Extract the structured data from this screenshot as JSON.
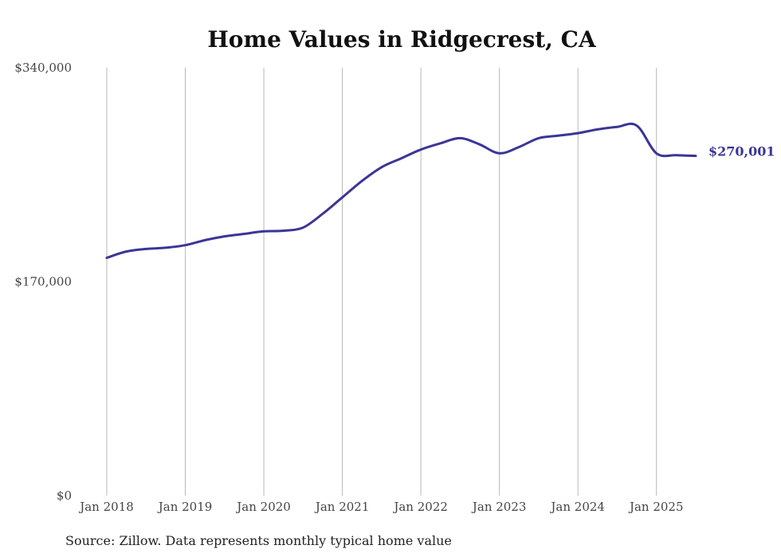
{
  "chart_data": {
    "type": "line",
    "title": "Home Values in Ridgecrest, CA",
    "source": "Source: Zillow. Data represents monthly typical home value",
    "ylim": [
      0,
      340000
    ],
    "y_ticks": [
      {
        "value": 0,
        "label": "$0"
      },
      {
        "value": 170000,
        "label": "$170,000"
      },
      {
        "value": 340000,
        "label": "$340,000"
      }
    ],
    "x_ticks": [
      {
        "x": 2018.0,
        "label": "Jan 2018"
      },
      {
        "x": 2019.0,
        "label": "Jan 2019"
      },
      {
        "x": 2020.0,
        "label": "Jan 2020"
      },
      {
        "x": 2021.0,
        "label": "Jan 2021"
      },
      {
        "x": 2022.0,
        "label": "Jan 2022"
      },
      {
        "x": 2023.0,
        "label": "Jan 2023"
      },
      {
        "x": 2024.0,
        "label": "Jan 2024"
      },
      {
        "x": 2025.0,
        "label": "Jan 2025"
      }
    ],
    "xlim": [
      2018.0,
      2025.5
    ],
    "grid": "vertical",
    "series": [
      {
        "color": "#3b3596",
        "end_label": "$270,001",
        "x": [
          2018.0,
          2018.25,
          2018.5,
          2018.75,
          2019.0,
          2019.25,
          2019.5,
          2019.75,
          2020.0,
          2020.25,
          2020.5,
          2020.75,
          2021.0,
          2021.25,
          2021.5,
          2021.75,
          2022.0,
          2022.25,
          2022.5,
          2022.75,
          2023.0,
          2023.25,
          2023.5,
          2023.75,
          2024.0,
          2024.25,
          2024.5,
          2024.75,
          2025.0,
          2025.25,
          2025.5
        ],
        "values": [
          189000,
          194000,
          196000,
          197000,
          199000,
          203000,
          206000,
          208000,
          210000,
          210500,
          213000,
          224000,
          237000,
          250000,
          261000,
          268000,
          275000,
          280000,
          284000,
          279000,
          272000,
          277000,
          284000,
          286000,
          288000,
          291000,
          293000,
          294000,
          272000,
          270500,
          270001
        ]
      }
    ]
  }
}
